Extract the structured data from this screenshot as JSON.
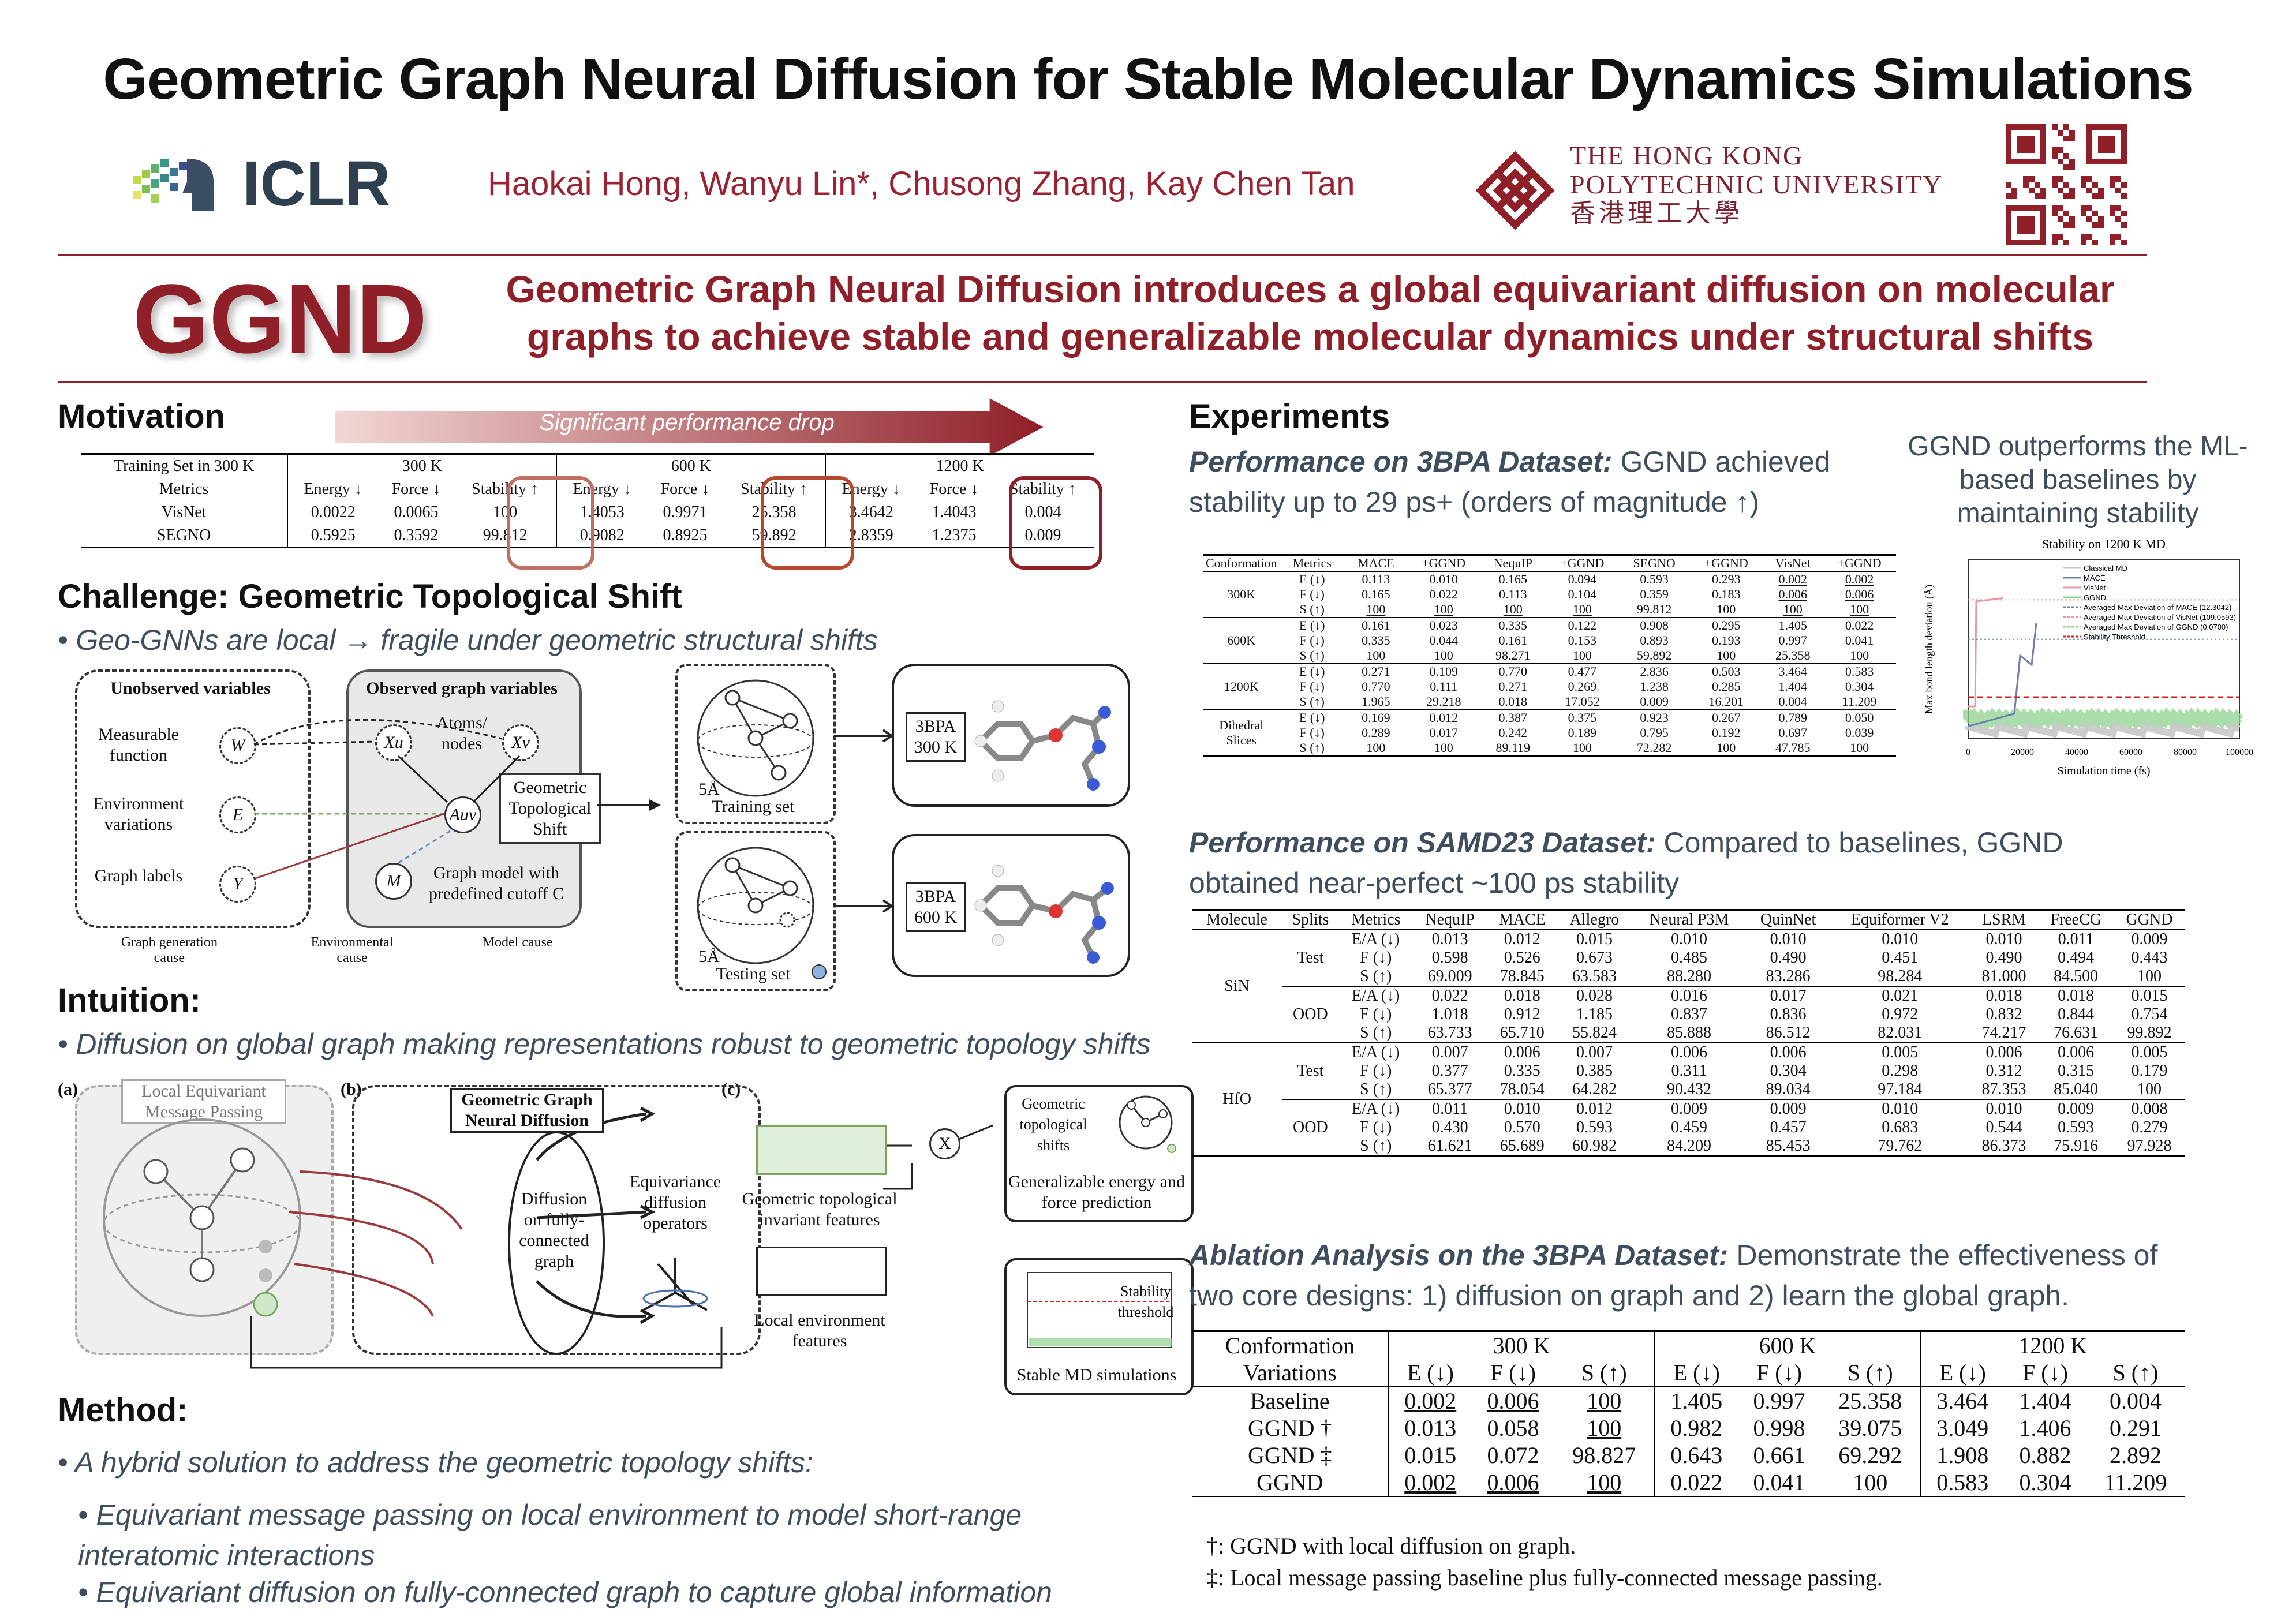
{
  "title": "Geometric Graph Neural Diffusion for Stable Molecular Dynamics Simulations",
  "iclr": "ICLR",
  "authors": "Haokai Hong, Wanyu Lin*, Chusong Zhang, Kay Chen Tan",
  "polyu": {
    "line1": "The Hong Kong",
    "line2": "Polytechnic University",
    "line3": "香港理工大學"
  },
  "ggnd": "GGND",
  "tagline": "Geometric Graph Neural Diffusion introduces a global equivariant diffusion on molecular graphs to achieve stable and generalizable molecular dynamics under structural shifts",
  "motivation": {
    "heading": "Motivation",
    "arrow": "Significant performance drop",
    "table": {
      "corner": "Training Set in 300 K",
      "temps": [
        "300 K",
        "600 K",
        "1200 K"
      ],
      "metrics_label": "Metrics",
      "metrics": [
        "Energy ↓",
        "Force ↓",
        "Stability ↑",
        "Energy ↓",
        "Force ↓",
        "Stability ↑",
        "Energy ↓",
        "Force ↓",
        "Stability ↑"
      ],
      "rows": [
        {
          "name": "VisNet",
          "v": [
            "0.0022",
            "0.0065",
            "100",
            "1.4053",
            "0.9971",
            "25.358",
            "3.4642",
            "1.4043",
            "0.004"
          ]
        },
        {
          "name": "SEGNO",
          "v": [
            "0.5925",
            "0.3592",
            "99.812",
            "0.9082",
            "0.8925",
            "59.892",
            "2.8359",
            "1.2375",
            "0.009"
          ]
        }
      ]
    }
  },
  "challenge": {
    "heading": "Challenge: Geometric Topological Shift",
    "bullet": "• Geo-GNNs are local → fragile under geometric structural shifts",
    "unobs": "Unobserved variables",
    "obs": "Observed graph variables",
    "measurable": "Measurable function",
    "env": "Environment variations",
    "labels": "Graph labels",
    "atoms": "Atoms/ nodes",
    "gts": "Geometric Topological Shift",
    "graphmodel": "Graph model with predefined cutoff C",
    "W": "W",
    "E": "E",
    "Y": "Y",
    "M": "M",
    "Xu": "Xu",
    "Xv": "Xv",
    "Auv": "Auv",
    "train": "Training set",
    "test": "Testing set",
    "r": "5Å",
    "b300": "3BPA 300 K",
    "b600": "3BPA 600 K",
    "leg1": "Graph generation cause",
    "leg2": "Environmental cause",
    "leg3": "Model cause"
  },
  "intuition": {
    "heading": "Intuition:",
    "bullet": "• Diffusion on global graph making representations robust to geometric topology shifts",
    "a": "(a)",
    "b": "(b)",
    "c": "(c)",
    "lemp": "Local Equivariant Message Passing",
    "ggnd": "Geometric Graph Neural Diffusion",
    "diff": "Diffusion on fully-connected graph",
    "eq": "Equivariance diffusion operators",
    "gtif": "Geometric topological invariant features",
    "lef": "Local environment features",
    "gts": "Geometric topological shifts",
    "gefp": "Generalizable energy and force prediction",
    "st": "Stability threshold",
    "smd": "Stable MD simulations",
    "x": "X"
  },
  "method": {
    "heading": "Method:",
    "b1": "• A hybrid solution to address the geometric topology shifts:",
    "b2": "• Equivariant message passing on local environment to model short-range interatomic interactions",
    "b3": "• Equivariant diffusion on fully-connected graph to capture global information"
  },
  "experiments": {
    "heading": "Experiments",
    "p3bpa_b": "Performance on 3BPA Dataset:",
    "p3bpa": " GGND achieved stability up to 29 ps+ (orders of magnitude ↑)",
    "side": "GGND outperforms the ML-based baselines by maintaining stability",
    "t3bpa": {
      "head": [
        "Conformation",
        "Metrics",
        "MACE",
        "+GGND",
        "NequIP",
        "+GGND",
        "SEGNO",
        "+GGND",
        "VisNet",
        "+GGND"
      ],
      "groups": [
        {
          "name": "300K",
          "rows": [
            [
              "E (↓)",
              "0.113",
              "0.010",
              "0.165",
              "0.094",
              "0.593",
              "0.293",
              "0.002",
              "0.002"
            ],
            [
              "F (↓)",
              "0.165",
              "0.022",
              "0.113",
              "0.104",
              "0.359",
              "0.183",
              "0.006",
              "0.006"
            ],
            [
              "S (↑)",
              "100",
              "100",
              "100",
              "100",
              "99.812",
              "100",
              "100",
              "100"
            ]
          ]
        },
        {
          "name": "600K",
          "rows": [
            [
              "E (↓)",
              "0.161",
              "0.023",
              "0.335",
              "0.122",
              "0.908",
              "0.295",
              "1.405",
              "0.022"
            ],
            [
              "F (↓)",
              "0.335",
              "0.044",
              "0.161",
              "0.153",
              "0.893",
              "0.193",
              "0.997",
              "0.041"
            ],
            [
              "S (↑)",
              "100",
              "100",
              "98.271",
              "100",
              "59.892",
              "100",
              "25.358",
              "100"
            ]
          ]
        },
        {
          "name": "1200K",
          "rows": [
            [
              "E (↓)",
              "0.271",
              "0.109",
              "0.770",
              "0.477",
              "2.836",
              "0.503",
              "3.464",
              "0.583"
            ],
            [
              "F (↓)",
              "0.770",
              "0.111",
              "0.271",
              "0.269",
              "1.238",
              "0.285",
              "1.404",
              "0.304"
            ],
            [
              "S (↑)",
              "1.965",
              "29.218",
              "0.018",
              "17.052",
              "0.009",
              "16.201",
              "0.004",
              "11.209"
            ]
          ]
        },
        {
          "name": "Dihedral Slices",
          "rows": [
            [
              "E (↓)",
              "0.169",
              "0.012",
              "0.387",
              "0.375",
              "0.923",
              "0.267",
              "0.789",
              "0.050"
            ],
            [
              "F (↓)",
              "0.289",
              "0.017",
              "0.242",
              "0.189",
              "0.795",
              "0.192",
              "0.697",
              "0.039"
            ],
            [
              "S (↑)",
              "100",
              "100",
              "89.119",
              "100",
              "72.282",
              "100",
              "47.785",
              "100"
            ]
          ]
        }
      ]
    },
    "psamd_b": "Performance on SAMD23 Dataset:",
    "psamd": " Compared to baselines, GGND obtained near-perfect ~100 ps stability",
    "tsamd": {
      "head": [
        "Molecule",
        "Splits",
        "Metrics",
        "NequIP",
        "MACE",
        "Allegro",
        "Neural P3M",
        "QuinNet",
        "Equiformer V2",
        "LSRM",
        "FreeCG",
        "GGND"
      ],
      "mols": [
        {
          "name": "SiN",
          "splits": [
            {
              "name": "Test",
              "rows": [
                [
                  "E/A (↓)",
                  "0.013",
                  "0.012",
                  "0.015",
                  "0.010",
                  "0.010",
                  "0.010",
                  "0.010",
                  "0.011",
                  "0.009"
                ],
                [
                  "F (↓)",
                  "0.598",
                  "0.526",
                  "0.673",
                  "0.485",
                  "0.490",
                  "0.451",
                  "0.490",
                  "0.494",
                  "0.443"
                ],
                [
                  "S (↑)",
                  "69.009",
                  "78.845",
                  "63.583",
                  "88.280",
                  "83.286",
                  "98.284",
                  "81.000",
                  "84.500",
                  "100"
                ]
              ]
            },
            {
              "name": "OOD",
              "rows": [
                [
                  "E/A (↓)",
                  "0.022",
                  "0.018",
                  "0.028",
                  "0.016",
                  "0.017",
                  "0.021",
                  "0.018",
                  "0.018",
                  "0.015"
                ],
                [
                  "F (↓)",
                  "1.018",
                  "0.912",
                  "1.185",
                  "0.837",
                  "0.836",
                  "0.972",
                  "0.832",
                  "0.844",
                  "0.754"
                ],
                [
                  "S (↑)",
                  "63.733",
                  "65.710",
                  "55.824",
                  "85.888",
                  "86.512",
                  "82.031",
                  "74.217",
                  "76.631",
                  "99.892"
                ]
              ]
            }
          ]
        },
        {
          "name": "HfO",
          "splits": [
            {
              "name": "Test",
              "rows": [
                [
                  "E/A (↓)",
                  "0.007",
                  "0.006",
                  "0.007",
                  "0.006",
                  "0.006",
                  "0.005",
                  "0.006",
                  "0.006",
                  "0.005"
                ],
                [
                  "F (↓)",
                  "0.377",
                  "0.335",
                  "0.385",
                  "0.311",
                  "0.304",
                  "0.298",
                  "0.312",
                  "0.315",
                  "0.179"
                ],
                [
                  "S (↑)",
                  "65.377",
                  "78.054",
                  "64.282",
                  "90.432",
                  "89.034",
                  "97.184",
                  "87.353",
                  "85.040",
                  "100"
                ]
              ]
            },
            {
              "name": "OOD",
              "rows": [
                [
                  "E/A (↓)",
                  "0.011",
                  "0.010",
                  "0.012",
                  "0.009",
                  "0.009",
                  "0.010",
                  "0.010",
                  "0.009",
                  "0.008"
                ],
                [
                  "F (↓)",
                  "0.430",
                  "0.570",
                  "0.593",
                  "0.459",
                  "0.457",
                  "0.683",
                  "0.544",
                  "0.593",
                  "0.279"
                ],
                [
                  "S (↑)",
                  "61.621",
                  "65.689",
                  "60.982",
                  "84.209",
                  "85.453",
                  "79.762",
                  "86.373",
                  "75.916",
                  "97.928"
                ]
              ]
            }
          ]
        }
      ]
    },
    "abl_b": "Ablation Analysis on the 3BPA Dataset:",
    "abl": " Demonstrate the effectiveness of two core designs: 1) diffusion on graph and 2) learn the global graph.",
    "tabl": {
      "conf": "Conformation",
      "temps": [
        "300 K",
        "600 K",
        "1200 K"
      ],
      "var": "Variations",
      "metrics": [
        "E (↓)",
        "F (↓)",
        "S (↑)",
        "E (↓)",
        "F (↓)",
        "S (↑)",
        "E (↓)",
        "F (↓)",
        "S (↑)"
      ],
      "rows": [
        {
          "name": "Baseline",
          "v": [
            "0.002",
            "0.006",
            "100",
            "1.405",
            "0.997",
            "25.358",
            "3.464",
            "1.404",
            "0.004"
          ]
        },
        {
          "name": "GGND †",
          "v": [
            "0.013",
            "0.058",
            "100",
            "0.982",
            "0.998",
            "39.075",
            "3.049",
            "1.406",
            "0.291"
          ]
        },
        {
          "name": "GGND ‡",
          "v": [
            "0.015",
            "0.072",
            "98.827",
            "0.643",
            "0.661",
            "69.292",
            "1.908",
            "0.882",
            "2.892"
          ]
        },
        {
          "name": "GGND",
          "v": [
            "0.002",
            "0.006",
            "100",
            "0.022",
            "0.041",
            "100",
            "0.583",
            "0.304",
            "11.209"
          ]
        }
      ],
      "fn1": "†: GGND with local diffusion on graph.",
      "fn2": "‡: Local message passing baseline plus fully-connected message passing."
    },
    "plot": {
      "title": "Stability on 1200 K MD",
      "xlabel": "Simulation time (fs)",
      "ylabel": "Max bond length deviation (Å)",
      "xticks": [
        "0",
        "20000",
        "40000",
        "60000",
        "80000",
        "100000"
      ],
      "legend": [
        "Classical MD",
        "MACE",
        "VisNet",
        "GGND",
        "Averaged Max Deviation of MACE (12.3042)",
        "Averaged Max Deviation of VisNet (109.0593)",
        "Averaged Max Deviation of GGND (0.0700)",
        "Stability Threshold"
      ],
      "colors": {
        "classical": "#c8c8c8",
        "mace": "#6a7fb0",
        "visnet": "#e69aa0",
        "ggnd": "#8fd08f",
        "threshold": "#d02020"
      }
    }
  }
}
